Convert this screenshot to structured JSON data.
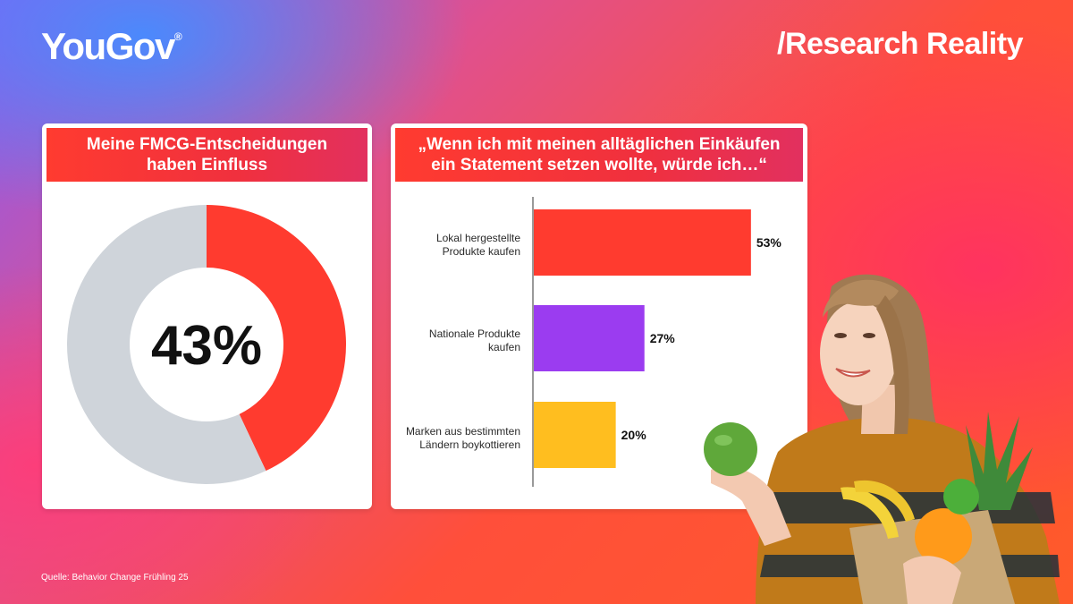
{
  "brand": {
    "logo": "YouGov",
    "registered": "®",
    "tagline": "/Research Reality"
  },
  "left_card": {
    "title_lines": [
      "Meine FMCG-Entscheidungen",
      "haben Einfluss"
    ],
    "center_value": "43%"
  },
  "right_card": {
    "title_lines": [
      "„Wenn ich mit meinen alltäglichen Einkäufen",
      "ein Statement setzen wollte, würde ich…“"
    ],
    "bars": [
      {
        "label_lines": [
          "Lokal hergestellte",
          "Produkte kaufen"
        ],
        "value_label": "53%"
      },
      {
        "label_lines": [
          "Nationale Produkte",
          "kaufen"
        ],
        "value_label": "27%"
      },
      {
        "label_lines": [
          "Marken aus bestimmten",
          "Ländern boykottieren"
        ],
        "value_label": "20%"
      }
    ]
  },
  "source": "Quelle: Behavior Change Frühling 25",
  "chart_data": [
    {
      "type": "pie",
      "title": "Meine FMCG-Entscheidungen haben Einfluss",
      "values": [
        43,
        57
      ],
      "colors": [
        "#ff3b2f",
        "#cfd4da"
      ],
      "center_label": "43%"
    },
    {
      "type": "bar",
      "orientation": "horizontal",
      "title": "„Wenn ich mit meinen alltäglichen Einkäufen ein Statement setzen wollte, würde ich…“",
      "categories": [
        "Lokal hergestellte Produkte kaufen",
        "Nationale Produkte kaufen",
        "Marken aus bestimmten Ländern boykottieren"
      ],
      "values": [
        53,
        27,
        20
      ],
      "colors": [
        "#ff3b2f",
        "#9b3cf0",
        "#ffbe1f"
      ],
      "xlim": [
        0,
        55
      ]
    }
  ],
  "photo": {
    "description_icon": "woman-with-groceries-photo"
  }
}
